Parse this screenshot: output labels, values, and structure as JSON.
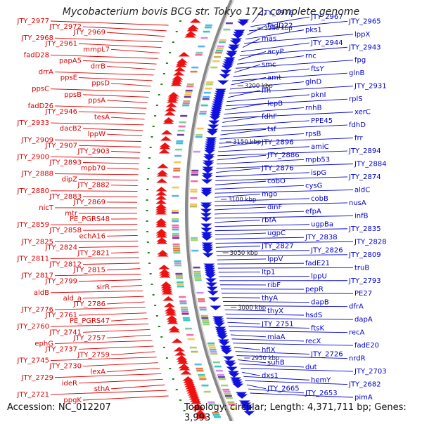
{
  "title": "Mycobacterium bovis BCG str. Tokyo 172, complete genome",
  "footer": {
    "accession": "Accession: NC_012207",
    "topology": "Topology: circular; Length: 4,371,711 bp; Genes: 3,993"
  },
  "colors": {
    "left_labels": "#dd0000",
    "right_labels": "#0000cc",
    "reverse_strand": "#ee1111",
    "forward_strand": "#1111dd",
    "backbone": "#888888",
    "ruler_tick": "#1a8a1a"
  },
  "ruler": [
    "3250 kbp",
    "3200 kbp",
    "3150 kbp",
    "3100 kbp",
    "3050 kbp",
    "3000 kbp",
    "2950 kbp"
  ],
  "left_labels": [
    "JTY_2977",
    "JTY_2972",
    "JTY_2969",
    "JTY_2968",
    "JTY_2961",
    "mmpL7",
    "fadD28",
    "papA5",
    "drrB",
    "drrA",
    "ppsE",
    "ppsD",
    "ppsC",
    "ppsB",
    "ppsA",
    "fadD26",
    "JTY_2946",
    "tesA",
    "JTY_2933",
    "dacB2",
    "lppW",
    "JTY_2909",
    "JTY_2907",
    "JTY_2903",
    "JTY_2900",
    "JTY_2893",
    "mpb70",
    "JTY_2888",
    "dipZ",
    "JTY_2882",
    "JTY_2880",
    "JTY_2883",
    "JTY_2869",
    "nicT",
    "mtr",
    "PE_PGRS48",
    "JTY_2859",
    "JTY_2858",
    "echA16",
    "JTY_2825",
    "JTY_2824",
    "JTY_2821",
    "JTY_2811",
    "JTY_2812",
    "JTY_2815",
    "JTY_2817",
    "JTY_2799",
    "sirR",
    "aldB",
    "ald_a",
    "JTY_2786",
    "JTY_2776",
    "JTY_2761",
    "PE_PGRS47",
    "JTY_2760",
    "JTY_2741",
    "JTY_2757",
    "ephG",
    "JTY_2737",
    "JTY_2759",
    "JTY_2745",
    "JTY_2730",
    "lexA",
    "JTY_2729",
    "ideR",
    "sthA",
    "JTY_2721",
    "ppgK"
  ],
  "right_labels": [
    "JTY_2978",
    "JTY_2967",
    "JTY_2965",
    "fadD22",
    "pks1",
    "lppX",
    "mas",
    "JTY_2944",
    "JTY_2943",
    "acyP",
    "rnc",
    "fpg",
    "smc",
    "ftsY",
    "glnB",
    "amt",
    "glnD",
    "JTY_2931",
    "ffh",
    "pknI",
    "rplS",
    "lepB",
    "rnhB",
    "xerC",
    "fdhF",
    "PPE45",
    "fdhD",
    "tsf",
    "rpsB",
    "frr",
    "JTY_2896",
    "amiC",
    "JTY_2894",
    "JTY_2886",
    "mpb53",
    "JTY_2884",
    "JTY_2876",
    "ispG",
    "JTY_2874",
    "cobO",
    "cysG",
    "aldC",
    "mgo",
    "cobB",
    "nusA",
    "dinF",
    "efpA",
    "infB",
    "rbfA",
    "ugpBa",
    "JTY_2835",
    "ugpC",
    "JTY_2838",
    "JTY_2828",
    "JTY_2827",
    "JTY_2826",
    "JTY_2809",
    "lppV",
    "fadE21",
    "truB",
    "ltp1",
    "lppU",
    "JTY_2793",
    "ribF",
    "pepR",
    "PE27",
    "thyA",
    "dapB",
    "dfrA",
    "thyX",
    "hsdS",
    "dapA",
    "JTY_2751",
    "ftsK",
    "recA",
    "miaA",
    "recX",
    "fadE20",
    "hflX",
    "JTY_2726",
    "nrdR",
    "suhB",
    "dut",
    "JTY_2703",
    "dxs1",
    "hemY",
    "JTY_2682",
    "JTY_2665",
    "JTY_2653",
    "pimA"
  ]
}
